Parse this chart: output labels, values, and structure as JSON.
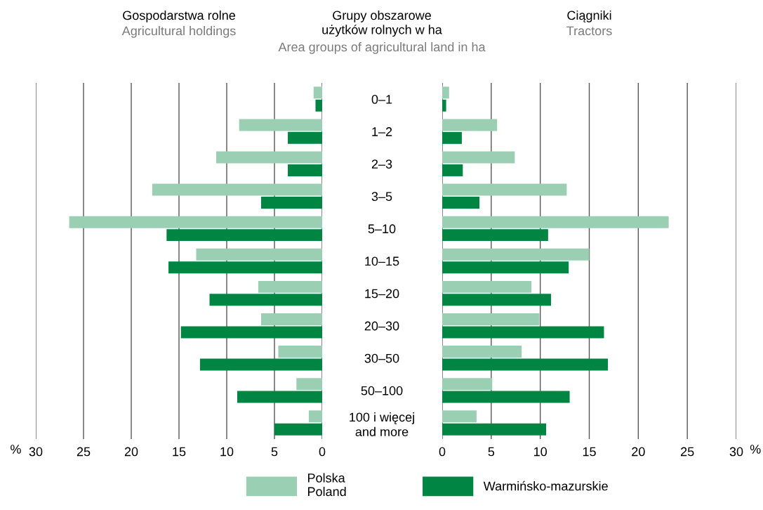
{
  "chart_data": [
    {
      "type": "bar",
      "orientation": "horizontal",
      "title": "Gospodarstwa rolne",
      "subtitle": "Agricultural holdings",
      "xlabel": "%",
      "annotations": [
        "Grupy obszarowe\nużytków rolnych w ha",
        "Area groups of agricultural land in ha"
      ],
      "categories": [
        "0–1",
        "1–2",
        "2–3",
        "3–5",
        "5–10",
        "10–15",
        "15–20",
        "20–30",
        "30–50",
        "50–100",
        "100 i więcej\nand more"
      ],
      "series": [
        {
          "name": "Polska\nPoland",
          "color": "#9bcfb3",
          "values": [
            0.9,
            8.7,
            11.1,
            17.8,
            26.5,
            13.2,
            6.7,
            6.4,
            4.6,
            2.7,
            1.4
          ]
        },
        {
          "name": "Warmińsko-mazurskie",
          "color": "#008542",
          "values": [
            0.7,
            3.6,
            3.6,
            6.4,
            16.3,
            16.1,
            11.8,
            14.8,
            12.8,
            8.9,
            5.0
          ]
        }
      ],
      "xlim": [
        30,
        0
      ],
      "xticks": [
        30,
        25,
        20,
        15,
        10,
        5,
        0
      ],
      "grid": "x",
      "legend": "bottom"
    },
    {
      "type": "bar",
      "orientation": "horizontal",
      "title": "Ciągniki",
      "subtitle": "Tractors",
      "xlabel": "%",
      "categories": [
        null,
        null,
        null,
        null,
        null,
        null,
        null,
        null,
        null,
        null,
        null
      ],
      "series": [
        {
          "color": "#9bcfb3",
          "values": [
            0.7,
            5.6,
            7.4,
            12.7,
            23.1,
            15.0,
            9.1,
            9.9,
            8.1,
            5.1,
            3.5
          ]
        },
        {
          "color": "#008542",
          "values": [
            0.4,
            2.0,
            2.1,
            3.8,
            10.8,
            12.9,
            11.1,
            16.5,
            16.9,
            13.0,
            10.6
          ]
        }
      ],
      "xlim": [
        0,
        30
      ],
      "xticks": [
        0,
        5,
        10,
        15,
        20,
        25,
        30
      ],
      "grid": "x",
      "tick_labels": "x"
    }
  ]
}
